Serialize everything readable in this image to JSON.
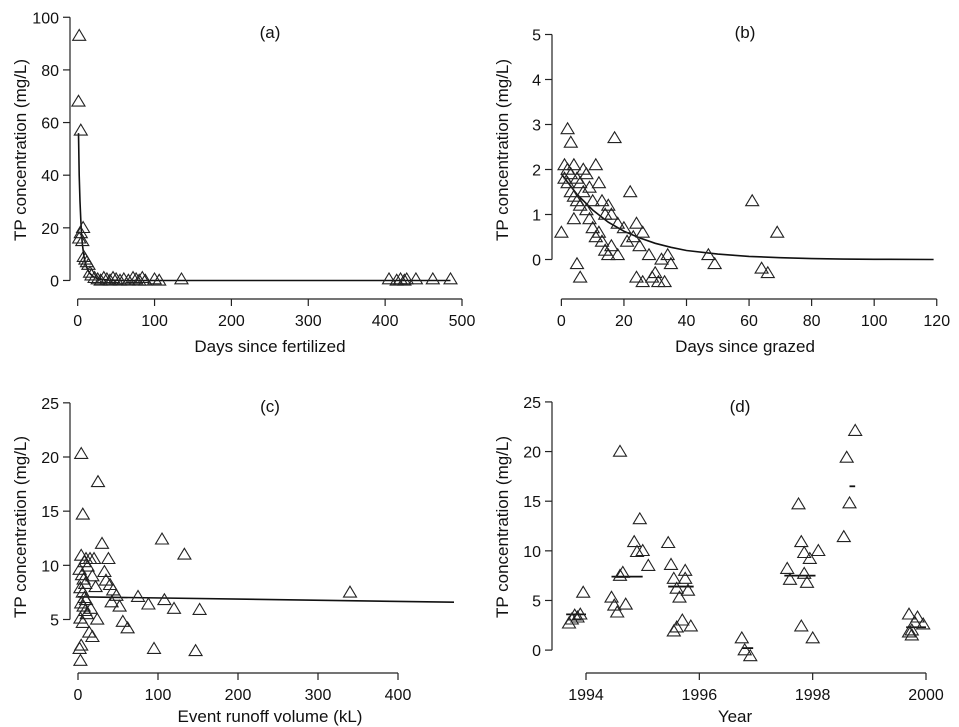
{
  "chart_data": [
    {
      "type": "scatter",
      "panel_label": "(a)",
      "xlabel": "Days since fertilized",
      "ylabel": "TP concentration (mg/L)",
      "xlim": [
        -10,
        500
      ],
      "ylim": [
        -4,
        102
      ],
      "xticks": [
        0,
        100,
        200,
        300,
        400,
        500
      ],
      "yticks": [
        0,
        20,
        40,
        60,
        80,
        100
      ],
      "grid": false,
      "points": [
        {
          "x": 2,
          "y": 93
        },
        {
          "x": 1,
          "y": 68
        },
        {
          "x": 4,
          "y": 57
        },
        {
          "x": 7,
          "y": 20
        },
        {
          "x": 4,
          "y": 18
        },
        {
          "x": 2,
          "y": 16
        },
        {
          "x": 6,
          "y": 15
        },
        {
          "x": 8,
          "y": 9
        },
        {
          "x": 10,
          "y": 8
        },
        {
          "x": 12,
          "y": 7
        },
        {
          "x": 14,
          "y": 6
        },
        {
          "x": 16,
          "y": 3
        },
        {
          "x": 18,
          "y": 2
        },
        {
          "x": 22,
          "y": 1
        },
        {
          "x": 26,
          "y": 0.5
        },
        {
          "x": 30,
          "y": 0
        },
        {
          "x": 34,
          "y": 1
        },
        {
          "x": 38,
          "y": 0.5
        },
        {
          "x": 42,
          "y": 0
        },
        {
          "x": 46,
          "y": 1
        },
        {
          "x": 50,
          "y": 0.5
        },
        {
          "x": 55,
          "y": 0
        },
        {
          "x": 60,
          "y": 0.5
        },
        {
          "x": 66,
          "y": 0
        },
        {
          "x": 72,
          "y": 1
        },
        {
          "x": 76,
          "y": 0.5
        },
        {
          "x": 80,
          "y": 0
        },
        {
          "x": 84,
          "y": 1
        },
        {
          "x": 88,
          "y": 0
        },
        {
          "x": 100,
          "y": 0.5
        },
        {
          "x": 106,
          "y": 0
        },
        {
          "x": 135,
          "y": 0.5
        },
        {
          "x": 405,
          "y": 0.5
        },
        {
          "x": 415,
          "y": 0
        },
        {
          "x": 420,
          "y": 0.5
        },
        {
          "x": 425,
          "y": 0
        },
        {
          "x": 428,
          "y": 0.5
        },
        {
          "x": 440,
          "y": 0.5
        },
        {
          "x": 462,
          "y": 0.5
        },
        {
          "x": 485,
          "y": 0.5
        }
      ],
      "fit_curve": {
        "x": [
          1,
          2,
          3,
          4,
          5,
          6,
          8,
          10,
          13,
          16,
          20,
          25,
          30,
          40,
          60,
          100,
          200,
          300,
          400,
          485
        ],
        "y": [
          56,
          40,
          30,
          23,
          18,
          14,
          9.5,
          6.5,
          4,
          2.6,
          1.5,
          0.8,
          0.45,
          0.15,
          0,
          0,
          0,
          0,
          0,
          0
        ]
      }
    },
    {
      "type": "scatter",
      "panel_label": "(b)",
      "xlabel": "Days since grazed",
      "ylabel": "TP concentration (mg/L)",
      "xlim": [
        -3,
        122
      ],
      "ylim": [
        -0.7,
        5.5
      ],
      "xticks": [
        0,
        20,
        40,
        60,
        80,
        100,
        120
      ],
      "yticks": [
        0,
        1,
        2,
        3,
        4,
        5
      ],
      "grid": false,
      "points": [
        {
          "x": 2,
          "y": 2.9
        },
        {
          "x": 3,
          "y": 2.6
        },
        {
          "x": 17,
          "y": 2.7
        },
        {
          "x": 1,
          "y": 2.1
        },
        {
          "x": 2,
          "y": 2.0
        },
        {
          "x": 3,
          "y": 1.9
        },
        {
          "x": 4,
          "y": 2.1
        },
        {
          "x": 5,
          "y": 1.8
        },
        {
          "x": 6,
          "y": 1.7
        },
        {
          "x": 7,
          "y": 2.0
        },
        {
          "x": 8,
          "y": 1.9
        },
        {
          "x": 9,
          "y": 1.6
        },
        {
          "x": 11,
          "y": 2.1
        },
        {
          "x": 2,
          "y": 1.7
        },
        {
          "x": 1,
          "y": 1.8
        },
        {
          "x": 3,
          "y": 1.5
        },
        {
          "x": 4,
          "y": 1.4
        },
        {
          "x": 5,
          "y": 1.3
        },
        {
          "x": 6,
          "y": 1.2
        },
        {
          "x": 7,
          "y": 1.5
        },
        {
          "x": 8,
          "y": 1.1
        },
        {
          "x": 10,
          "y": 1.3
        },
        {
          "x": 12,
          "y": 1.7
        },
        {
          "x": 13,
          "y": 1.3
        },
        {
          "x": 14,
          "y": 1.0
        },
        {
          "x": 15,
          "y": 1.2
        },
        {
          "x": 16,
          "y": 1.0
        },
        {
          "x": 18,
          "y": 0.8
        },
        {
          "x": 20,
          "y": 0.7
        },
        {
          "x": 22,
          "y": 1.5
        },
        {
          "x": 24,
          "y": 0.8
        },
        {
          "x": 9,
          "y": 0.9
        },
        {
          "x": 10,
          "y": 0.7
        },
        {
          "x": 11,
          "y": 0.5
        },
        {
          "x": 12,
          "y": 0.6
        },
        {
          "x": 13,
          "y": 0.4
        },
        {
          "x": 14,
          "y": 0.2
        },
        {
          "x": 15,
          "y": 0.1
        },
        {
          "x": 16,
          "y": 0.3
        },
        {
          "x": 18,
          "y": 0.1
        },
        {
          "x": 21,
          "y": 0.4
        },
        {
          "x": 23,
          "y": 0.5
        },
        {
          "x": 25,
          "y": 0.3
        },
        {
          "x": 26,
          "y": 0.6
        },
        {
          "x": 0,
          "y": 0.6
        },
        {
          "x": 4,
          "y": 0.9
        },
        {
          "x": 5,
          "y": -0.1
        },
        {
          "x": 6,
          "y": -0.4
        },
        {
          "x": 28,
          "y": 0.1
        },
        {
          "x": 30,
          "y": -0.3
        },
        {
          "x": 32,
          "y": 0.0
        },
        {
          "x": 33,
          "y": -0.5
        },
        {
          "x": 34,
          "y": 0.1
        },
        {
          "x": 35,
          "y": -0.1
        },
        {
          "x": 24,
          "y": -0.4
        },
        {
          "x": 26,
          "y": -0.5
        },
        {
          "x": 29,
          "y": -0.4
        },
        {
          "x": 31,
          "y": -0.5
        },
        {
          "x": 47,
          "y": 0.1
        },
        {
          "x": 49,
          "y": -0.1
        },
        {
          "x": 61,
          "y": 1.3
        },
        {
          "x": 69,
          "y": 0.6
        },
        {
          "x": 64,
          "y": -0.2
        },
        {
          "x": 66,
          "y": -0.3
        }
      ],
      "fit_curve": {
        "x": [
          0,
          5,
          10,
          15,
          20,
          25,
          30,
          35,
          40,
          50,
          60,
          70,
          80,
          90,
          100,
          119
        ],
        "y": [
          1.9,
          1.45,
          1.1,
          0.83,
          0.63,
          0.48,
          0.36,
          0.27,
          0.2,
          0.12,
          0.07,
          0.04,
          0.02,
          0.01,
          0.005,
          0
        ]
      }
    },
    {
      "type": "scatter",
      "panel_label": "(c)",
      "xlabel": "Event runoff volume (kL)",
      "ylabel": "TP concentration (mg/L)",
      "xlim": [
        -10,
        480
      ],
      "ylim": [
        0.8,
        26
      ],
      "xticks": [
        0,
        100,
        200,
        300,
        400
      ],
      "yticks": [
        5,
        10,
        15,
        20,
        25
      ],
      "grid": false,
      "points": [
        {
          "x": 4,
          "y": 20.3
        },
        {
          "x": 6,
          "y": 14.7
        },
        {
          "x": 25,
          "y": 17.7
        },
        {
          "x": 4,
          "y": 10.9
        },
        {
          "x": 8,
          "y": 10.3
        },
        {
          "x": 10,
          "y": 10.6
        },
        {
          "x": 12,
          "y": 9.9
        },
        {
          "x": 2,
          "y": 9.6
        },
        {
          "x": 5,
          "y": 9.1
        },
        {
          "x": 7,
          "y": 8.7
        },
        {
          "x": 9,
          "y": 8.3
        },
        {
          "x": 3,
          "y": 7.9
        },
        {
          "x": 6,
          "y": 7.5
        },
        {
          "x": 8,
          "y": 7.0
        },
        {
          "x": 10,
          "y": 6.8
        },
        {
          "x": 4,
          "y": 6.5
        },
        {
          "x": 7,
          "y": 6.2
        },
        {
          "x": 9,
          "y": 5.8
        },
        {
          "x": 11,
          "y": 5.5
        },
        {
          "x": 3,
          "y": 5.1
        },
        {
          "x": 6,
          "y": 4.7
        },
        {
          "x": 4,
          "y": 2.6
        },
        {
          "x": 2,
          "y": 2.3
        },
        {
          "x": 3,
          "y": 1.2
        },
        {
          "x": 15,
          "y": 10.6
        },
        {
          "x": 20,
          "y": 10.6
        },
        {
          "x": 18,
          "y": 9.0
        },
        {
          "x": 22,
          "y": 8.0
        },
        {
          "x": 16,
          "y": 6.0
        },
        {
          "x": 14,
          "y": 3.8
        },
        {
          "x": 18,
          "y": 3.4
        },
        {
          "x": 24,
          "y": 5.0
        },
        {
          "x": 30,
          "y": 12.0
        },
        {
          "x": 33,
          "y": 9.4
        },
        {
          "x": 35,
          "y": 8.6
        },
        {
          "x": 38,
          "y": 10.6
        },
        {
          "x": 40,
          "y": 8.2
        },
        {
          "x": 44,
          "y": 7.7
        },
        {
          "x": 42,
          "y": 6.6
        },
        {
          "x": 48,
          "y": 7.2
        },
        {
          "x": 52,
          "y": 6.2
        },
        {
          "x": 56,
          "y": 4.8
        },
        {
          "x": 62,
          "y": 4.2
        },
        {
          "x": 75,
          "y": 7.1
        },
        {
          "x": 88,
          "y": 6.4
        },
        {
          "x": 95,
          "y": 2.3
        },
        {
          "x": 105,
          "y": 12.4
        },
        {
          "x": 108,
          "y": 6.8
        },
        {
          "x": 120,
          "y": 6.0
        },
        {
          "x": 133,
          "y": 11.0
        },
        {
          "x": 147,
          "y": 2.1
        },
        {
          "x": 152,
          "y": 5.9
        },
        {
          "x": 340,
          "y": 7.5
        }
      ],
      "fit_curve": {
        "x": [
          0,
          470
        ],
        "y": [
          7.1,
          6.6
        ]
      }
    },
    {
      "type": "scatter",
      "panel_label": "(d)",
      "xlabel": "Year",
      "ylabel": "TP concentration (mg/L)",
      "xlim": [
        1993.4,
        2000.3
      ],
      "ylim": [
        -1.5,
        26
      ],
      "xticks": [
        1994,
        1996,
        1998,
        2000
      ],
      "yticks": [
        0,
        5,
        10,
        15,
        20,
        25
      ],
      "grid": false,
      "points": [
        {
          "x": 1993.7,
          "y": 2.7
        },
        {
          "x": 1993.75,
          "y": 3.1
        },
        {
          "x": 1993.8,
          "y": 3.5
        },
        {
          "x": 1993.85,
          "y": 3.3
        },
        {
          "x": 1993.9,
          "y": 3.6
        },
        {
          "x": 1993.95,
          "y": 5.8
        },
        {
          "x": 1994.45,
          "y": 5.3
        },
        {
          "x": 1994.5,
          "y": 4.5
        },
        {
          "x": 1994.55,
          "y": 3.8
        },
        {
          "x": 1994.6,
          "y": 7.5
        },
        {
          "x": 1994.6,
          "y": 20.0
        },
        {
          "x": 1994.65,
          "y": 7.8
        },
        {
          "x": 1994.7,
          "y": 4.6
        },
        {
          "x": 1994.85,
          "y": 10.9
        },
        {
          "x": 1994.9,
          "y": 9.9
        },
        {
          "x": 1994.95,
          "y": 13.2
        },
        {
          "x": 1995.0,
          "y": 10.0
        },
        {
          "x": 1995.1,
          "y": 8.5
        },
        {
          "x": 1995.45,
          "y": 10.8
        },
        {
          "x": 1995.5,
          "y": 8.6
        },
        {
          "x": 1995.55,
          "y": 7.2
        },
        {
          "x": 1995.6,
          "y": 6.2
        },
        {
          "x": 1995.6,
          "y": 2.3
        },
        {
          "x": 1995.65,
          "y": 5.3
        },
        {
          "x": 1995.7,
          "y": 3.0
        },
        {
          "x": 1995.75,
          "y": 8.0
        },
        {
          "x": 1995.8,
          "y": 6.0
        },
        {
          "x": 1995.85,
          "y": 2.4
        },
        {
          "x": 1995.55,
          "y": 1.9
        },
        {
          "x": 1995.75,
          "y": 7.2
        },
        {
          "x": 1996.75,
          "y": 1.2
        },
        {
          "x": 1996.8,
          "y": 0.0
        },
        {
          "x": 1996.9,
          "y": -0.6
        },
        {
          "x": 1997.55,
          "y": 8.2
        },
        {
          "x": 1997.6,
          "y": 7.1
        },
        {
          "x": 1997.75,
          "y": 14.7
        },
        {
          "x": 1997.8,
          "y": 10.9
        },
        {
          "x": 1997.85,
          "y": 9.8
        },
        {
          "x": 1997.85,
          "y": 7.7
        },
        {
          "x": 1997.9,
          "y": 6.8
        },
        {
          "x": 1997.8,
          "y": 2.4
        },
        {
          "x": 1998.0,
          "y": 1.2
        },
        {
          "x": 1998.1,
          "y": 10.0
        },
        {
          "x": 1997.95,
          "y": 9.2
        },
        {
          "x": 1998.55,
          "y": 11.4
        },
        {
          "x": 1998.6,
          "y": 19.4
        },
        {
          "x": 1998.65,
          "y": 14.8
        },
        {
          "x": 1998.75,
          "y": 22.1
        },
        {
          "x": 1999.7,
          "y": 3.6
        },
        {
          "x": 1999.75,
          "y": 2.0
        },
        {
          "x": 1999.75,
          "y": 1.5
        },
        {
          "x": 1999.8,
          "y": 2.8
        },
        {
          "x": 1999.85,
          "y": 3.3
        },
        {
          "x": 1999.95,
          "y": 2.6
        },
        {
          "x": 1999.7,
          "y": 1.8
        }
      ],
      "means": [
        {
          "x0": 1993.65,
          "x1": 1994.0,
          "y": 3.6
        },
        {
          "x0": 1994.45,
          "x1": 1995.0,
          "y": 7.4
        },
        {
          "x0": 1995.45,
          "x1": 1995.9,
          "y": 6.4
        },
        {
          "x0": 1996.75,
          "x1": 1996.95,
          "y": 0.2
        },
        {
          "x0": 1997.5,
          "x1": 1998.05,
          "y": 7.5
        },
        {
          "x0": 1998.65,
          "x1": 1998.75,
          "y": 16.5
        },
        {
          "x0": 1999.65,
          "x1": 2000.0,
          "y": 2.3
        }
      ]
    }
  ]
}
